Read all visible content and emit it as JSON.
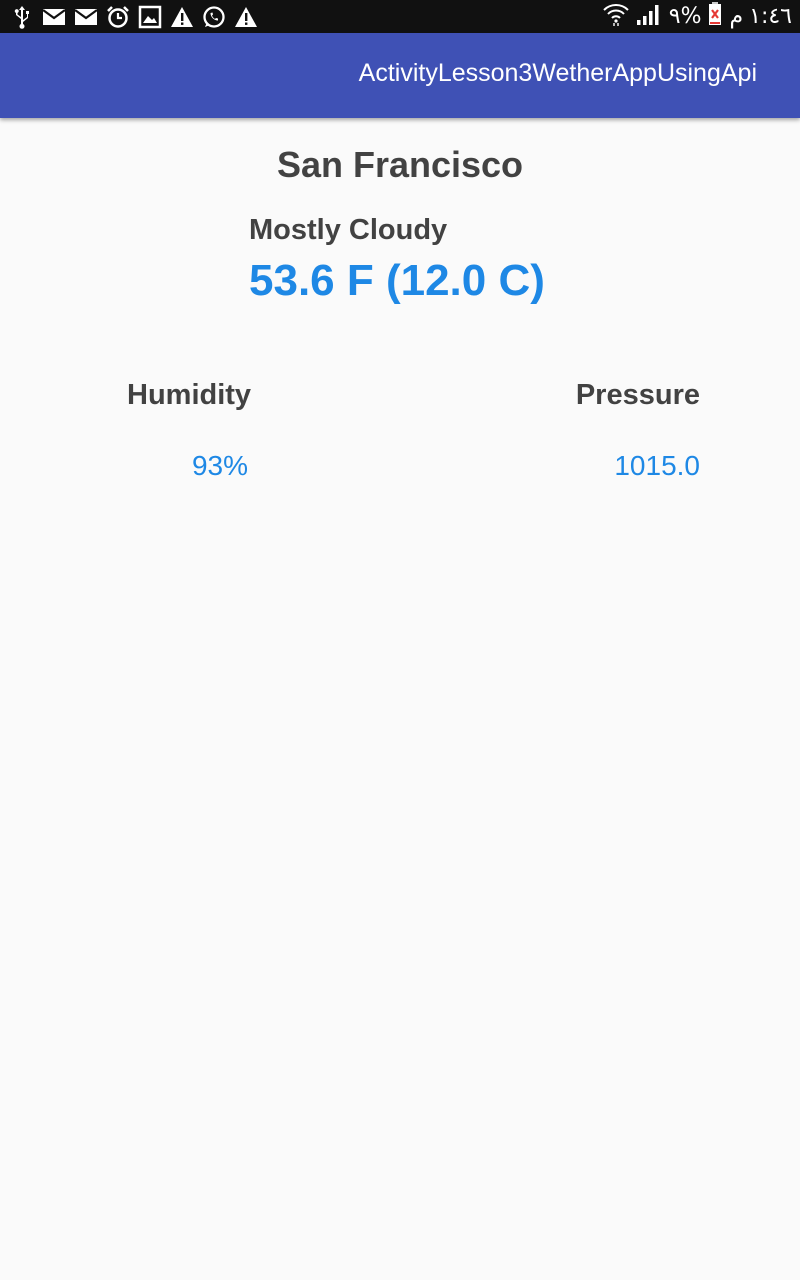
{
  "status_bar": {
    "left_icons": [
      "usb-icon",
      "email-icon",
      "email-icon",
      "alarm-icon",
      "image-icon",
      "warning-icon",
      "whatsapp-icon",
      "warning-icon"
    ],
    "right_icons": [
      "wifi-icon",
      "signal-icon",
      "battery-icon"
    ],
    "battery_text": "٩%",
    "am_pm": "م",
    "time": "١:٤٦"
  },
  "app_bar": {
    "title": "ActivityLesson3WetherAppUsingApi",
    "color": "#3f51b5"
  },
  "weather": {
    "city": "San Francisco",
    "condition": "Mostly Cloudy",
    "temperature": "53.6 F (12.0 C)",
    "humidity_label": "Humidity",
    "humidity_value": "93%",
    "pressure_label": "Pressure",
    "pressure_value": "1015.0"
  },
  "colors": {
    "accent": "#1e88e5",
    "text_primary": "#424242",
    "background": "#fafafa"
  }
}
